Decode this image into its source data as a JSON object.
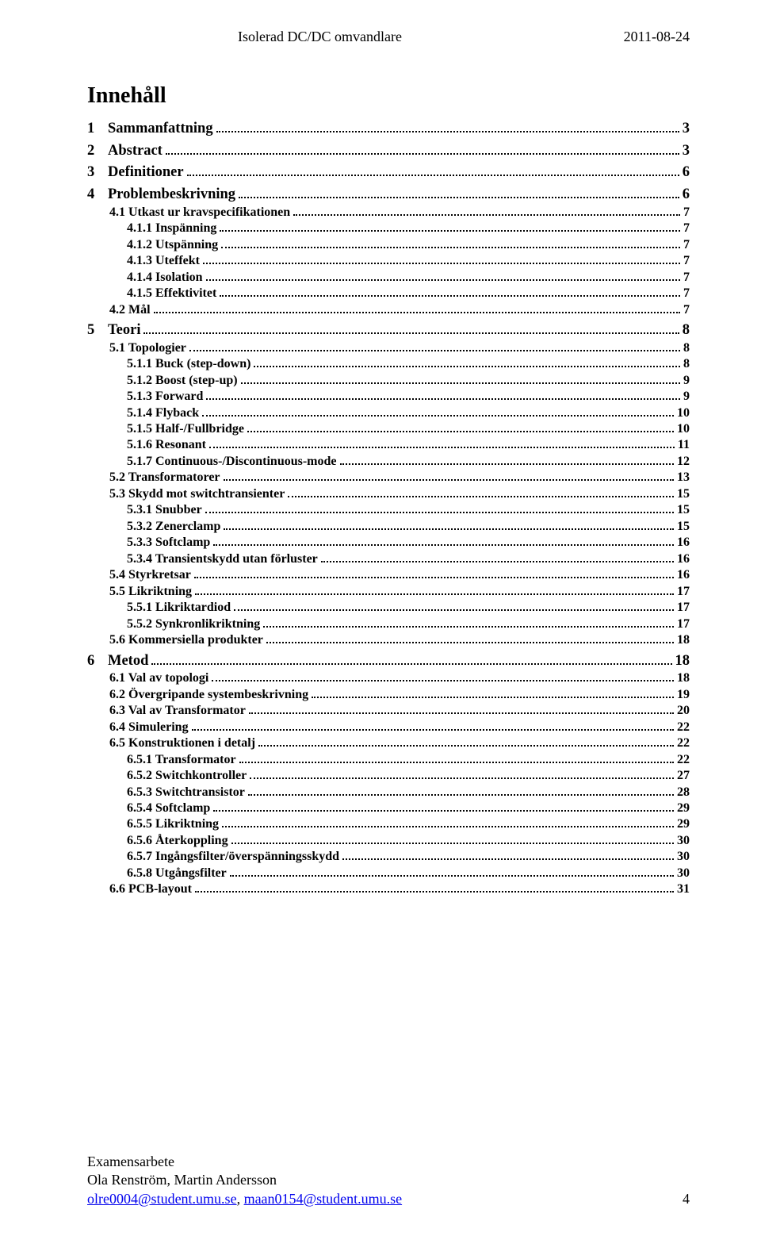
{
  "header": {
    "doc_title": "Isolerad DC/DC omvandlare",
    "date": "2011-08-24"
  },
  "title": "Innehåll",
  "toc": [
    {
      "level": 1,
      "num": "1",
      "label": "Sammanfattning",
      "page": "3"
    },
    {
      "level": 1,
      "num": "2",
      "label": "Abstract",
      "page": "3"
    },
    {
      "level": 1,
      "num": "3",
      "label": "Definitioner",
      "page": "6"
    },
    {
      "level": 1,
      "num": "4",
      "label": "Problembeskrivning",
      "page": "6"
    },
    {
      "level": 2,
      "num": "4.1",
      "label": "Utkast ur kravspecifikationen",
      "page": "7"
    },
    {
      "level": 3,
      "num": "4.1.1",
      "label": "Inspänning",
      "page": "7"
    },
    {
      "level": 3,
      "num": "4.1.2",
      "label": "Utspänning",
      "page": "7"
    },
    {
      "level": 3,
      "num": "4.1.3",
      "label": "Uteffekt",
      "page": "7"
    },
    {
      "level": 3,
      "num": "4.1.4",
      "label": "Isolation",
      "page": "7"
    },
    {
      "level": 3,
      "num": "4.1.5",
      "label": "Effektivitet",
      "page": "7"
    },
    {
      "level": 2,
      "num": "4.2",
      "label": "Mål",
      "page": "7"
    },
    {
      "level": 1,
      "num": "5",
      "label": "Teori",
      "page": "8"
    },
    {
      "level": 2,
      "num": "5.1",
      "label": "Topologier",
      "page": "8"
    },
    {
      "level": 3,
      "num": "5.1.1",
      "label": "Buck (step-down)",
      "page": "8"
    },
    {
      "level": 3,
      "num": "5.1.2",
      "label": "Boost (step-up)",
      "page": "9"
    },
    {
      "level": 3,
      "num": "5.1.3",
      "label": "Forward",
      "page": "9"
    },
    {
      "level": 3,
      "num": "5.1.4",
      "label": "Flyback",
      "page": "10"
    },
    {
      "level": 3,
      "num": "5.1.5",
      "label": "Half-/Fullbridge",
      "page": "10"
    },
    {
      "level": 3,
      "num": "5.1.6",
      "label": "Resonant",
      "page": "11"
    },
    {
      "level": 3,
      "num": "5.1.7",
      "label": "Continuous-/Discontinuous-mode",
      "page": "12"
    },
    {
      "level": 2,
      "num": "5.2",
      "label": "Transformatorer",
      "page": "13"
    },
    {
      "level": 2,
      "num": "5.3",
      "label": "Skydd mot switchtransienter",
      "page": "15"
    },
    {
      "level": 3,
      "num": "5.3.1",
      "label": "Snubber",
      "page": "15"
    },
    {
      "level": 3,
      "num": "5.3.2",
      "label": "Zenerclamp",
      "page": "15"
    },
    {
      "level": 3,
      "num": "5.3.3",
      "label": "Softclamp",
      "page": "16"
    },
    {
      "level": 3,
      "num": "5.3.4",
      "label": "Transientskydd utan förluster",
      "page": "16"
    },
    {
      "level": 2,
      "num": "5.4",
      "label": "Styrkretsar",
      "page": "16"
    },
    {
      "level": 2,
      "num": "5.5",
      "label": "Likriktning",
      "page": "17"
    },
    {
      "level": 3,
      "num": "5.5.1",
      "label": "Likriktardiod",
      "page": "17"
    },
    {
      "level": 3,
      "num": "5.5.2",
      "label": "Synkronlikriktning",
      "page": "17"
    },
    {
      "level": 2,
      "num": "5.6",
      "label": "Kommersiella produkter",
      "page": "18"
    },
    {
      "level": 1,
      "num": "6",
      "label": "Metod",
      "page": "18"
    },
    {
      "level": 2,
      "num": "6.1",
      "label": "Val av topologi",
      "page": "18"
    },
    {
      "level": 2,
      "num": "6.2",
      "label": "Övergripande systembeskrivning",
      "page": "19"
    },
    {
      "level": 2,
      "num": "6.3",
      "label": "Val av Transformator",
      "page": "20"
    },
    {
      "level": 2,
      "num": "6.4",
      "label": "Simulering",
      "page": "22"
    },
    {
      "level": 2,
      "num": "6.5",
      "label": "Konstruktionen i detalj",
      "page": "22"
    },
    {
      "level": 3,
      "num": "6.5.1",
      "label": "Transformator",
      "page": "22"
    },
    {
      "level": 3,
      "num": "6.5.2",
      "label": "Switchkontroller",
      "page": "27"
    },
    {
      "level": 3,
      "num": "6.5.3",
      "label": "Switchtransistor",
      "page": "28"
    },
    {
      "level": 3,
      "num": "6.5.4",
      "label": "Softclamp",
      "page": "29"
    },
    {
      "level": 3,
      "num": "6.5.5",
      "label": "Likriktning",
      "page": "29"
    },
    {
      "level": 3,
      "num": "6.5.6",
      "label": "Återkoppling",
      "page": "30"
    },
    {
      "level": 3,
      "num": "6.5.7",
      "label": "Ingångsfilter/överspänningsskydd",
      "page": "30"
    },
    {
      "level": 3,
      "num": "6.5.8",
      "label": "Utgångsfilter",
      "page": "30"
    },
    {
      "level": 2,
      "num": "6.6",
      "label": "PCB-layout",
      "page": "31"
    }
  ],
  "footer": {
    "line1": "Examensarbete",
    "line2": "Ola Renström, Martin Andersson",
    "email1": "olre0004@student.umu.se",
    "email2": "maan0154@student.umu.se",
    "sep": ", ",
    "page": "4"
  }
}
